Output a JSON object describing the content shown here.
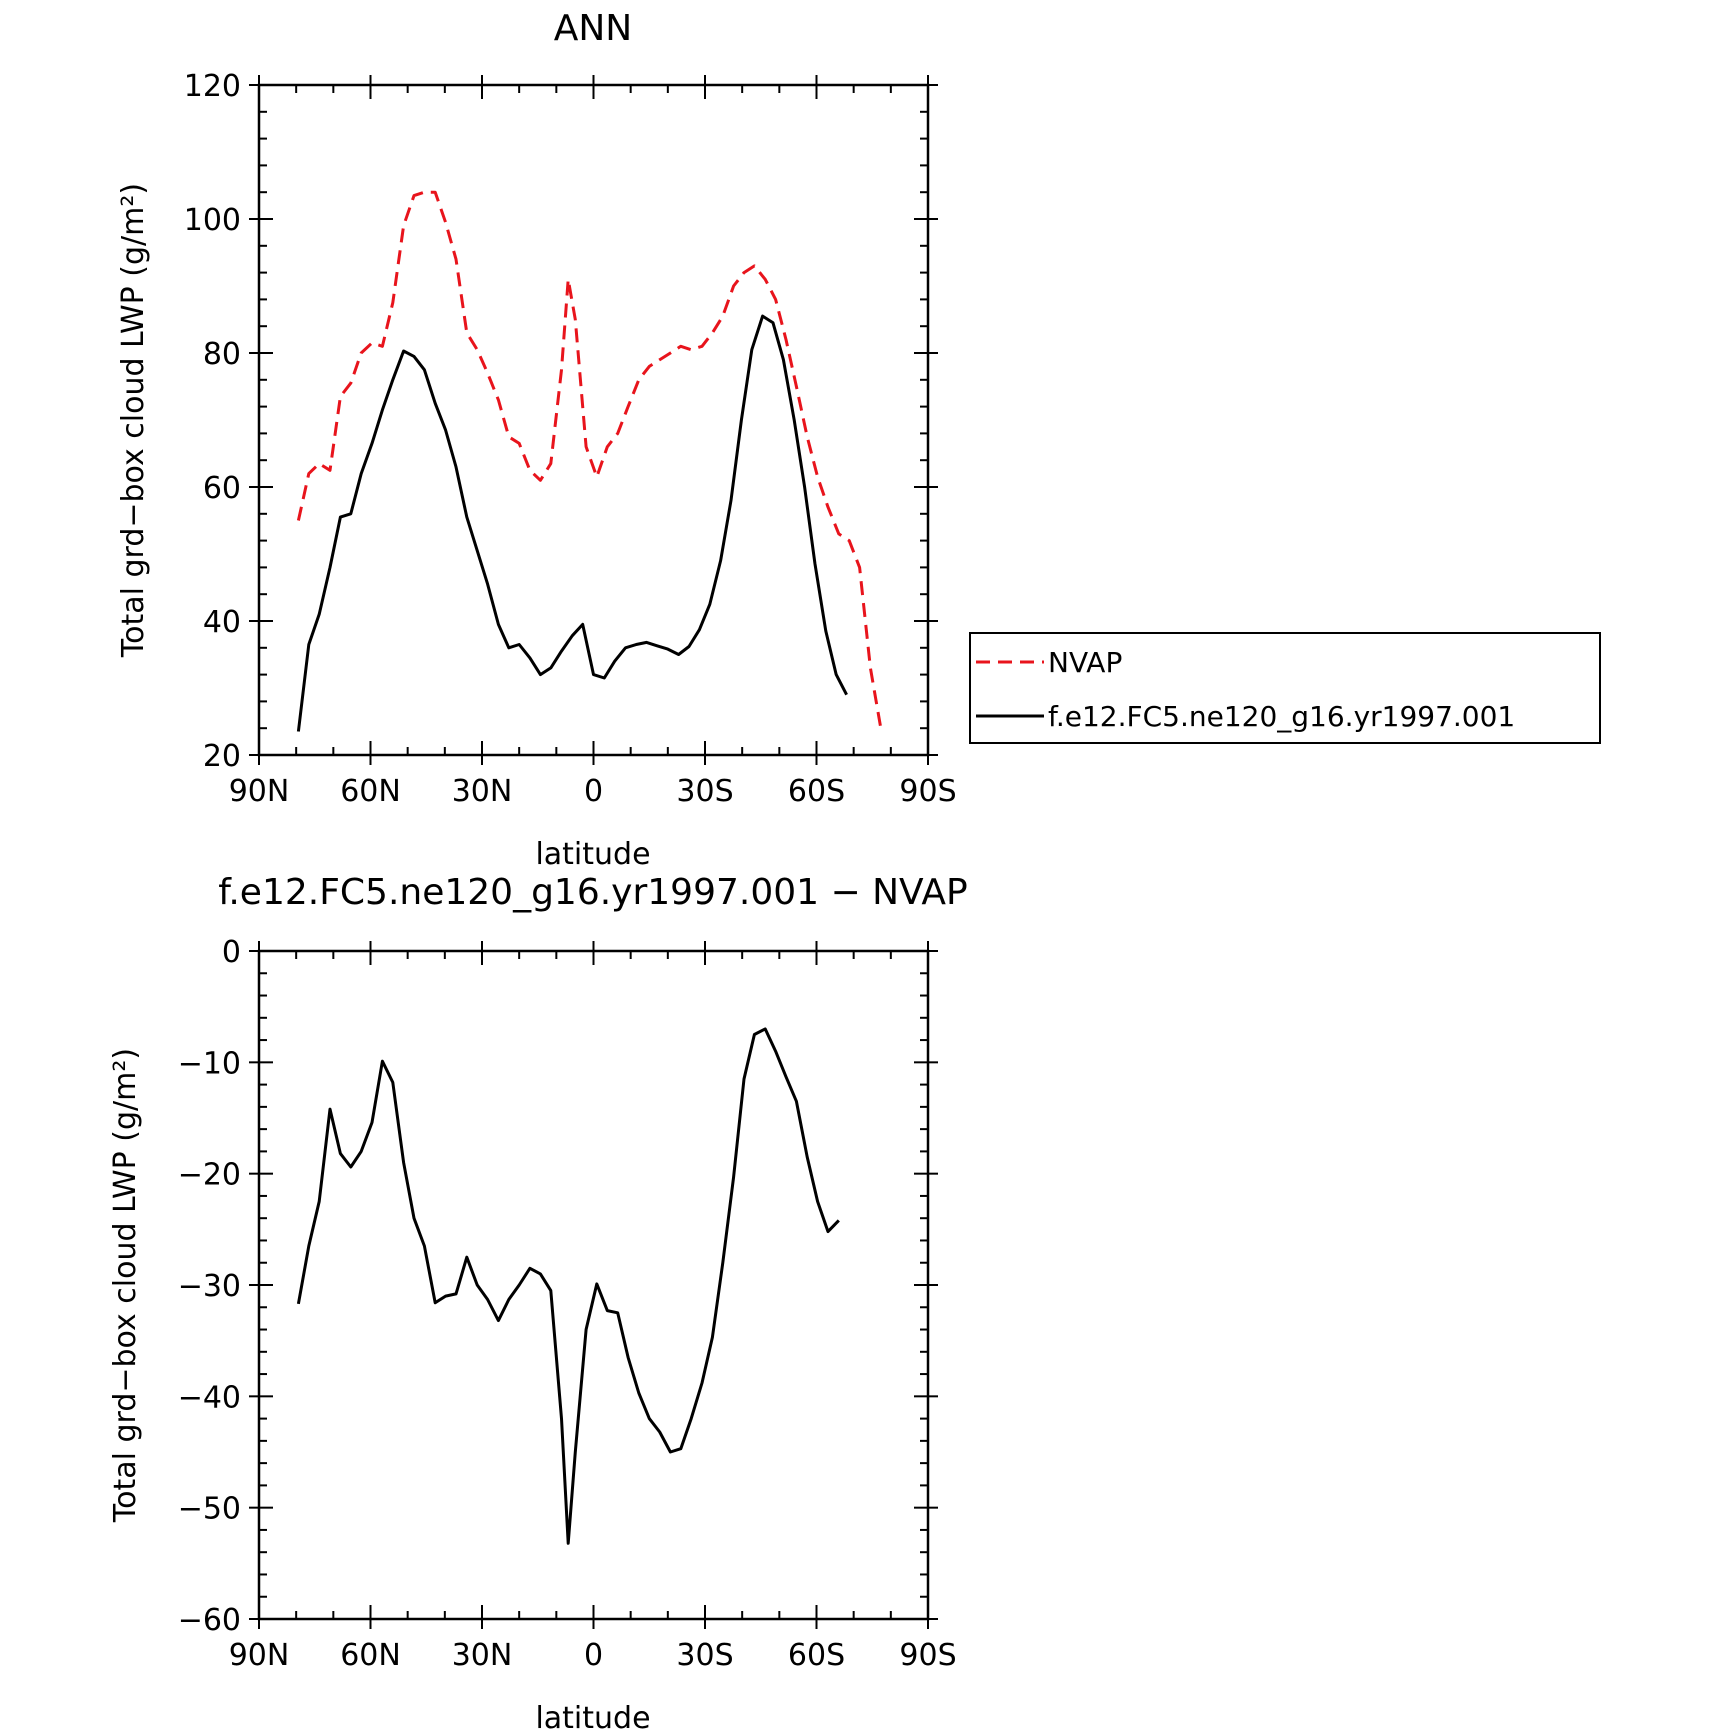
{
  "chart_data": [
    {
      "type": "line",
      "title": "ANN",
      "xlabel": "latitude",
      "ylabel": "Total grd−box cloud LWP (g/m²)",
      "xlim": [
        90,
        -90
      ],
      "ylim": [
        20,
        120
      ],
      "x_ticks": [
        90,
        60,
        30,
        0,
        -30,
        -60,
        -90
      ],
      "x_tick_labels": [
        "90N",
        "60N",
        "30N",
        "0",
        "30S",
        "60S",
        "90S"
      ],
      "y_ticks": [
        20,
        40,
        60,
        80,
        100,
        120
      ],
      "y_tick_labels": [
        "20",
        "40",
        "60",
        "80",
        "100",
        "120"
      ],
      "legend_position": "right",
      "series": [
        {
          "name": "NVAP",
          "color": "#e8141c",
          "dash": "dashed",
          "points": [
            [
              79.4,
              55
            ],
            [
              76.6,
              62
            ],
            [
              73.8,
              63.5
            ],
            [
              70.9,
              62.5
            ],
            [
              68.1,
              73.5
            ],
            [
              65.3,
              75.5
            ],
            [
              62.5,
              80
            ],
            [
              59.6,
              81.5
            ],
            [
              56.8,
              81
            ],
            [
              54,
              87.5
            ],
            [
              51.1,
              99
            ],
            [
              48.3,
              103.5
            ],
            [
              45.5,
              104
            ],
            [
              42.6,
              104
            ],
            [
              39.8,
              99.5
            ],
            [
              37,
              94
            ],
            [
              34.1,
              83
            ],
            [
              31.3,
              80.5
            ],
            [
              28.5,
              77
            ],
            [
              25.6,
              73
            ],
            [
              22.8,
              67.5
            ],
            [
              20,
              66.5
            ],
            [
              17.1,
              62.5
            ],
            [
              14.3,
              61
            ],
            [
              11.5,
              63.5
            ],
            [
              8.6,
              77.5
            ],
            [
              6.8,
              91
            ],
            [
              4.9,
              85
            ],
            [
              2,
              66
            ],
            [
              -0.9,
              61.5
            ],
            [
              -3.7,
              66
            ],
            [
              -6.5,
              68
            ],
            [
              -9.3,
              72
            ],
            [
              -12.2,
              76
            ],
            [
              -15,
              78
            ],
            [
              -17.8,
              79
            ],
            [
              -20.7,
              80
            ],
            [
              -23.5,
              81
            ],
            [
              -26.3,
              80.5
            ],
            [
              -29.2,
              81
            ],
            [
              -32,
              83
            ],
            [
              -34.8,
              85.5
            ],
            [
              -37.7,
              90
            ],
            [
              -40.5,
              92
            ],
            [
              -43.3,
              93
            ],
            [
              -46.2,
              91
            ],
            [
              -49,
              88
            ],
            [
              -51.8,
              82
            ],
            [
              -54.6,
              75
            ],
            [
              -57.5,
              67.5
            ],
            [
              -60.3,
              61.5
            ],
            [
              -63.1,
              57
            ],
            [
              -66,
              53
            ],
            [
              -68.8,
              52
            ],
            [
              -71.6,
              48
            ],
            [
              -74.5,
              33
            ],
            [
              -77.3,
              24
            ]
          ]
        },
        {
          "name": "f.e12.FC5.ne120_g16.yr1997.001",
          "color": "#000000",
          "dash": "solid",
          "points": [
            [
              79.4,
              23.5
            ],
            [
              76.6,
              36.5
            ],
            [
              73.8,
              41
            ],
            [
              70.9,
              48
            ],
            [
              68.1,
              55.5
            ],
            [
              65.3,
              56
            ],
            [
              62.5,
              62
            ],
            [
              59.6,
              66.5
            ],
            [
              56.8,
              71.5
            ],
            [
              54,
              76
            ],
            [
              51.1,
              80.3
            ],
            [
              48.3,
              79.5
            ],
            [
              45.5,
              77.5
            ],
            [
              42.6,
              72.5
            ],
            [
              39.8,
              68.5
            ],
            [
              37,
              63
            ],
            [
              34.1,
              55.5
            ],
            [
              31.3,
              50.5
            ],
            [
              28.5,
              45.5
            ],
            [
              25.6,
              39.5
            ],
            [
              22.8,
              36
            ],
            [
              20,
              36.5
            ],
            [
              17.1,
              34.5
            ],
            [
              14.3,
              32
            ],
            [
              11.5,
              33
            ],
            [
              8.6,
              35.5
            ],
            [
              5.7,
              37.8
            ],
            [
              2.9,
              39.5
            ],
            [
              0,
              32
            ],
            [
              -2.9,
              31.5
            ],
            [
              -5.7,
              34
            ],
            [
              -8.6,
              36
            ],
            [
              -11.5,
              36.5
            ],
            [
              -14.3,
              36.8
            ],
            [
              -17.1,
              36.3
            ],
            [
              -20,
              35.8
            ],
            [
              -22.9,
              35
            ],
            [
              -25.7,
              36.2
            ],
            [
              -28.5,
              38.7
            ],
            [
              -31.3,
              42.5
            ],
            [
              -34.2,
              49
            ],
            [
              -37,
              58
            ],
            [
              -39.8,
              70
            ],
            [
              -42.6,
              80.5
            ],
            [
              -45.5,
              85.5
            ],
            [
              -48.3,
              84.5
            ],
            [
              -51.1,
              79
            ],
            [
              -54,
              70
            ],
            [
              -56.8,
              60
            ],
            [
              -59.6,
              48.5
            ],
            [
              -62.5,
              38.5
            ],
            [
              -65.3,
              32
            ],
            [
              -68.1,
              29
            ]
          ]
        }
      ]
    },
    {
      "type": "line",
      "title": "f.e12.FC5.ne120_g16.yr1997.001 − NVAP",
      "xlabel": "latitude",
      "ylabel": "Total grd−box cloud LWP (g/m²)",
      "xlim": [
        90,
        -90
      ],
      "ylim": [
        -60,
        0
      ],
      "x_ticks": [
        90,
        60,
        30,
        0,
        -30,
        -60,
        -90
      ],
      "x_tick_labels": [
        "90N",
        "60N",
        "30N",
        "0",
        "30S",
        "60S",
        "90S"
      ],
      "y_ticks": [
        0,
        -10,
        -20,
        -30,
        -40,
        -50,
        -60
      ],
      "y_tick_labels": [
        "0",
        "−10",
        "−20",
        "−30",
        "−40",
        "−50",
        "−60"
      ],
      "series": [
        {
          "color": "#000000",
          "dash": "solid",
          "points": [
            [
              79.4,
              -31.7
            ],
            [
              76.6,
              -26.5
            ],
            [
              73.8,
              -22.5
            ],
            [
              70.9,
              -14.2
            ],
            [
              68.1,
              -18.2
            ],
            [
              65.3,
              -19.4
            ],
            [
              62.5,
              -18
            ],
            [
              59.6,
              -15.4
            ],
            [
              56.8,
              -9.9
            ],
            [
              54,
              -11.8
            ],
            [
              51.1,
              -19
            ],
            [
              48.3,
              -24
            ],
            [
              45.5,
              -26.5
            ],
            [
              42.6,
              -31.6
            ],
            [
              39.8,
              -31
            ],
            [
              37,
              -30.8
            ],
            [
              34.1,
              -27.5
            ],
            [
              31.3,
              -30
            ],
            [
              28.5,
              -31.3
            ],
            [
              25.6,
              -33.2
            ],
            [
              22.8,
              -31.3
            ],
            [
              20,
              -30
            ],
            [
              17.1,
              -28.5
            ],
            [
              14.3,
              -29
            ],
            [
              11.5,
              -30.5
            ],
            [
              8.6,
              -42
            ],
            [
              6.8,
              -53.2
            ],
            [
              4.9,
              -45
            ],
            [
              2,
              -34
            ],
            [
              -0.9,
              -29.9
            ],
            [
              -3.7,
              -32.3
            ],
            [
              -6.5,
              -32.5
            ],
            [
              -9.3,
              -36.5
            ],
            [
              -12.2,
              -39.7
            ],
            [
              -15,
              -42
            ],
            [
              -17.8,
              -43.2
            ],
            [
              -20.7,
              -45
            ],
            [
              -23.5,
              -44.7
            ],
            [
              -26.3,
              -42
            ],
            [
              -29.2,
              -38.8
            ],
            [
              -32,
              -34.7
            ],
            [
              -34.8,
              -28
            ],
            [
              -37.7,
              -20.3
            ],
            [
              -40.5,
              -11.5
            ],
            [
              -43.3,
              -7.5
            ],
            [
              -46.2,
              -7
            ],
            [
              -49,
              -9
            ],
            [
              -51.8,
              -11.3
            ],
            [
              -54.6,
              -13.5
            ],
            [
              -57.5,
              -18.5
            ],
            [
              -60.3,
              -22.5
            ],
            [
              -63.1,
              -25.2
            ],
            [
              -66,
              -24.2
            ]
          ]
        }
      ]
    }
  ]
}
